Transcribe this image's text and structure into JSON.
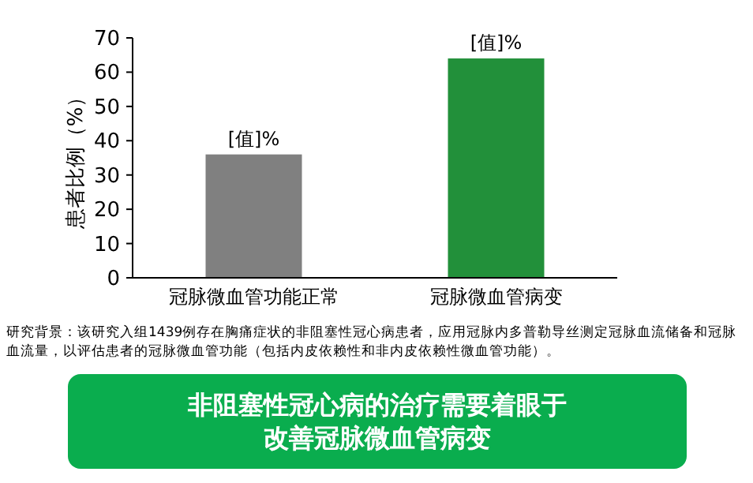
{
  "chart_data": {
    "type": "bar",
    "ylabel": "患者比例（%）",
    "categories": [
      "冠脉微血管功能正常",
      "冠脉微血管病变"
    ],
    "values": [
      36,
      64
    ],
    "colors": [
      "#808080",
      "#22903a"
    ],
    "value_labels": [
      "[值]%",
      "[值]%"
    ],
    "ylim": [
      0,
      70
    ],
    "yticks": [
      0,
      10,
      20,
      30,
      40,
      50,
      60,
      70
    ],
    "grid": false,
    "annotations": [
      "研究背景：该研究入组1439例存在胸痛症状的非阻塞性冠心病患者，应用冠脉内多普勒导丝测定冠脉血流储备和冠脉血流量，以评估患者的冠脉微血管功能（包括内皮依赖性和非内皮依赖性微血管功能）。",
      "非阻塞性冠心病的治疗需要着眼于改善冠脉微血管病变"
    ]
  }
}
